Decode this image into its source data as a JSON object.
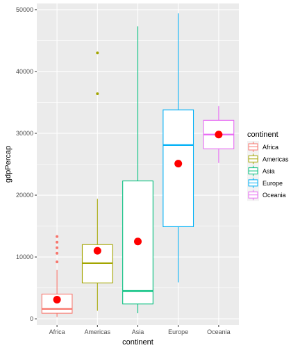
{
  "chart_data": {
    "type": "boxplot",
    "xlabel": "continent",
    "ylabel": "gdpPercap",
    "ylim": [
      -1000,
      51000
    ],
    "yticks": [
      0,
      10000,
      20000,
      30000,
      40000,
      50000
    ],
    "ytick_labels": [
      "0",
      "10000",
      "20000",
      "30000",
      "40000",
      "50000"
    ],
    "categories": [
      "Africa",
      "Americas",
      "Asia",
      "Europe",
      "Oceania"
    ],
    "boxes": [
      {
        "name": "Africa",
        "color": "#F8766D",
        "q1": 900,
        "median": 1600,
        "q3": 4000,
        "whisker_low": 300,
        "whisker_high": 7900,
        "outliers": [
          9200,
          10600,
          11500,
          12400,
          13300
        ],
        "mean": 3100
      },
      {
        "name": "Americas",
        "color": "#A3A500",
        "q1": 5800,
        "median": 9000,
        "q3": 12000,
        "whisker_low": 1300,
        "whisker_high": 19400,
        "outliers": [
          36400,
          43000
        ],
        "mean": 11000
      },
      {
        "name": "Asia",
        "color": "#00BF7D",
        "q1": 2400,
        "median": 4500,
        "q3": 22300,
        "whisker_low": 900,
        "whisker_high": 47300,
        "outliers": [],
        "mean": 12500
      },
      {
        "name": "Europe",
        "color": "#00B0F6",
        "q1": 14900,
        "median": 28100,
        "q3": 33800,
        "whisker_low": 5900,
        "whisker_high": 49400,
        "outliers": [],
        "mean": 25100
      },
      {
        "name": "Oceania",
        "color": "#E76BF3",
        "q1": 27500,
        "median": 29800,
        "q3": 32100,
        "whisker_low": 25200,
        "whisker_high": 34400,
        "outliers": [],
        "mean": 29800
      }
    ],
    "mean_marker_color": "#FF0000",
    "legend": {
      "title": "continent",
      "position": "right",
      "entries": [
        "Africa",
        "Americas",
        "Asia",
        "Europe",
        "Oceania"
      ]
    },
    "grid": true,
    "panel_background": "#EBEBEB"
  }
}
